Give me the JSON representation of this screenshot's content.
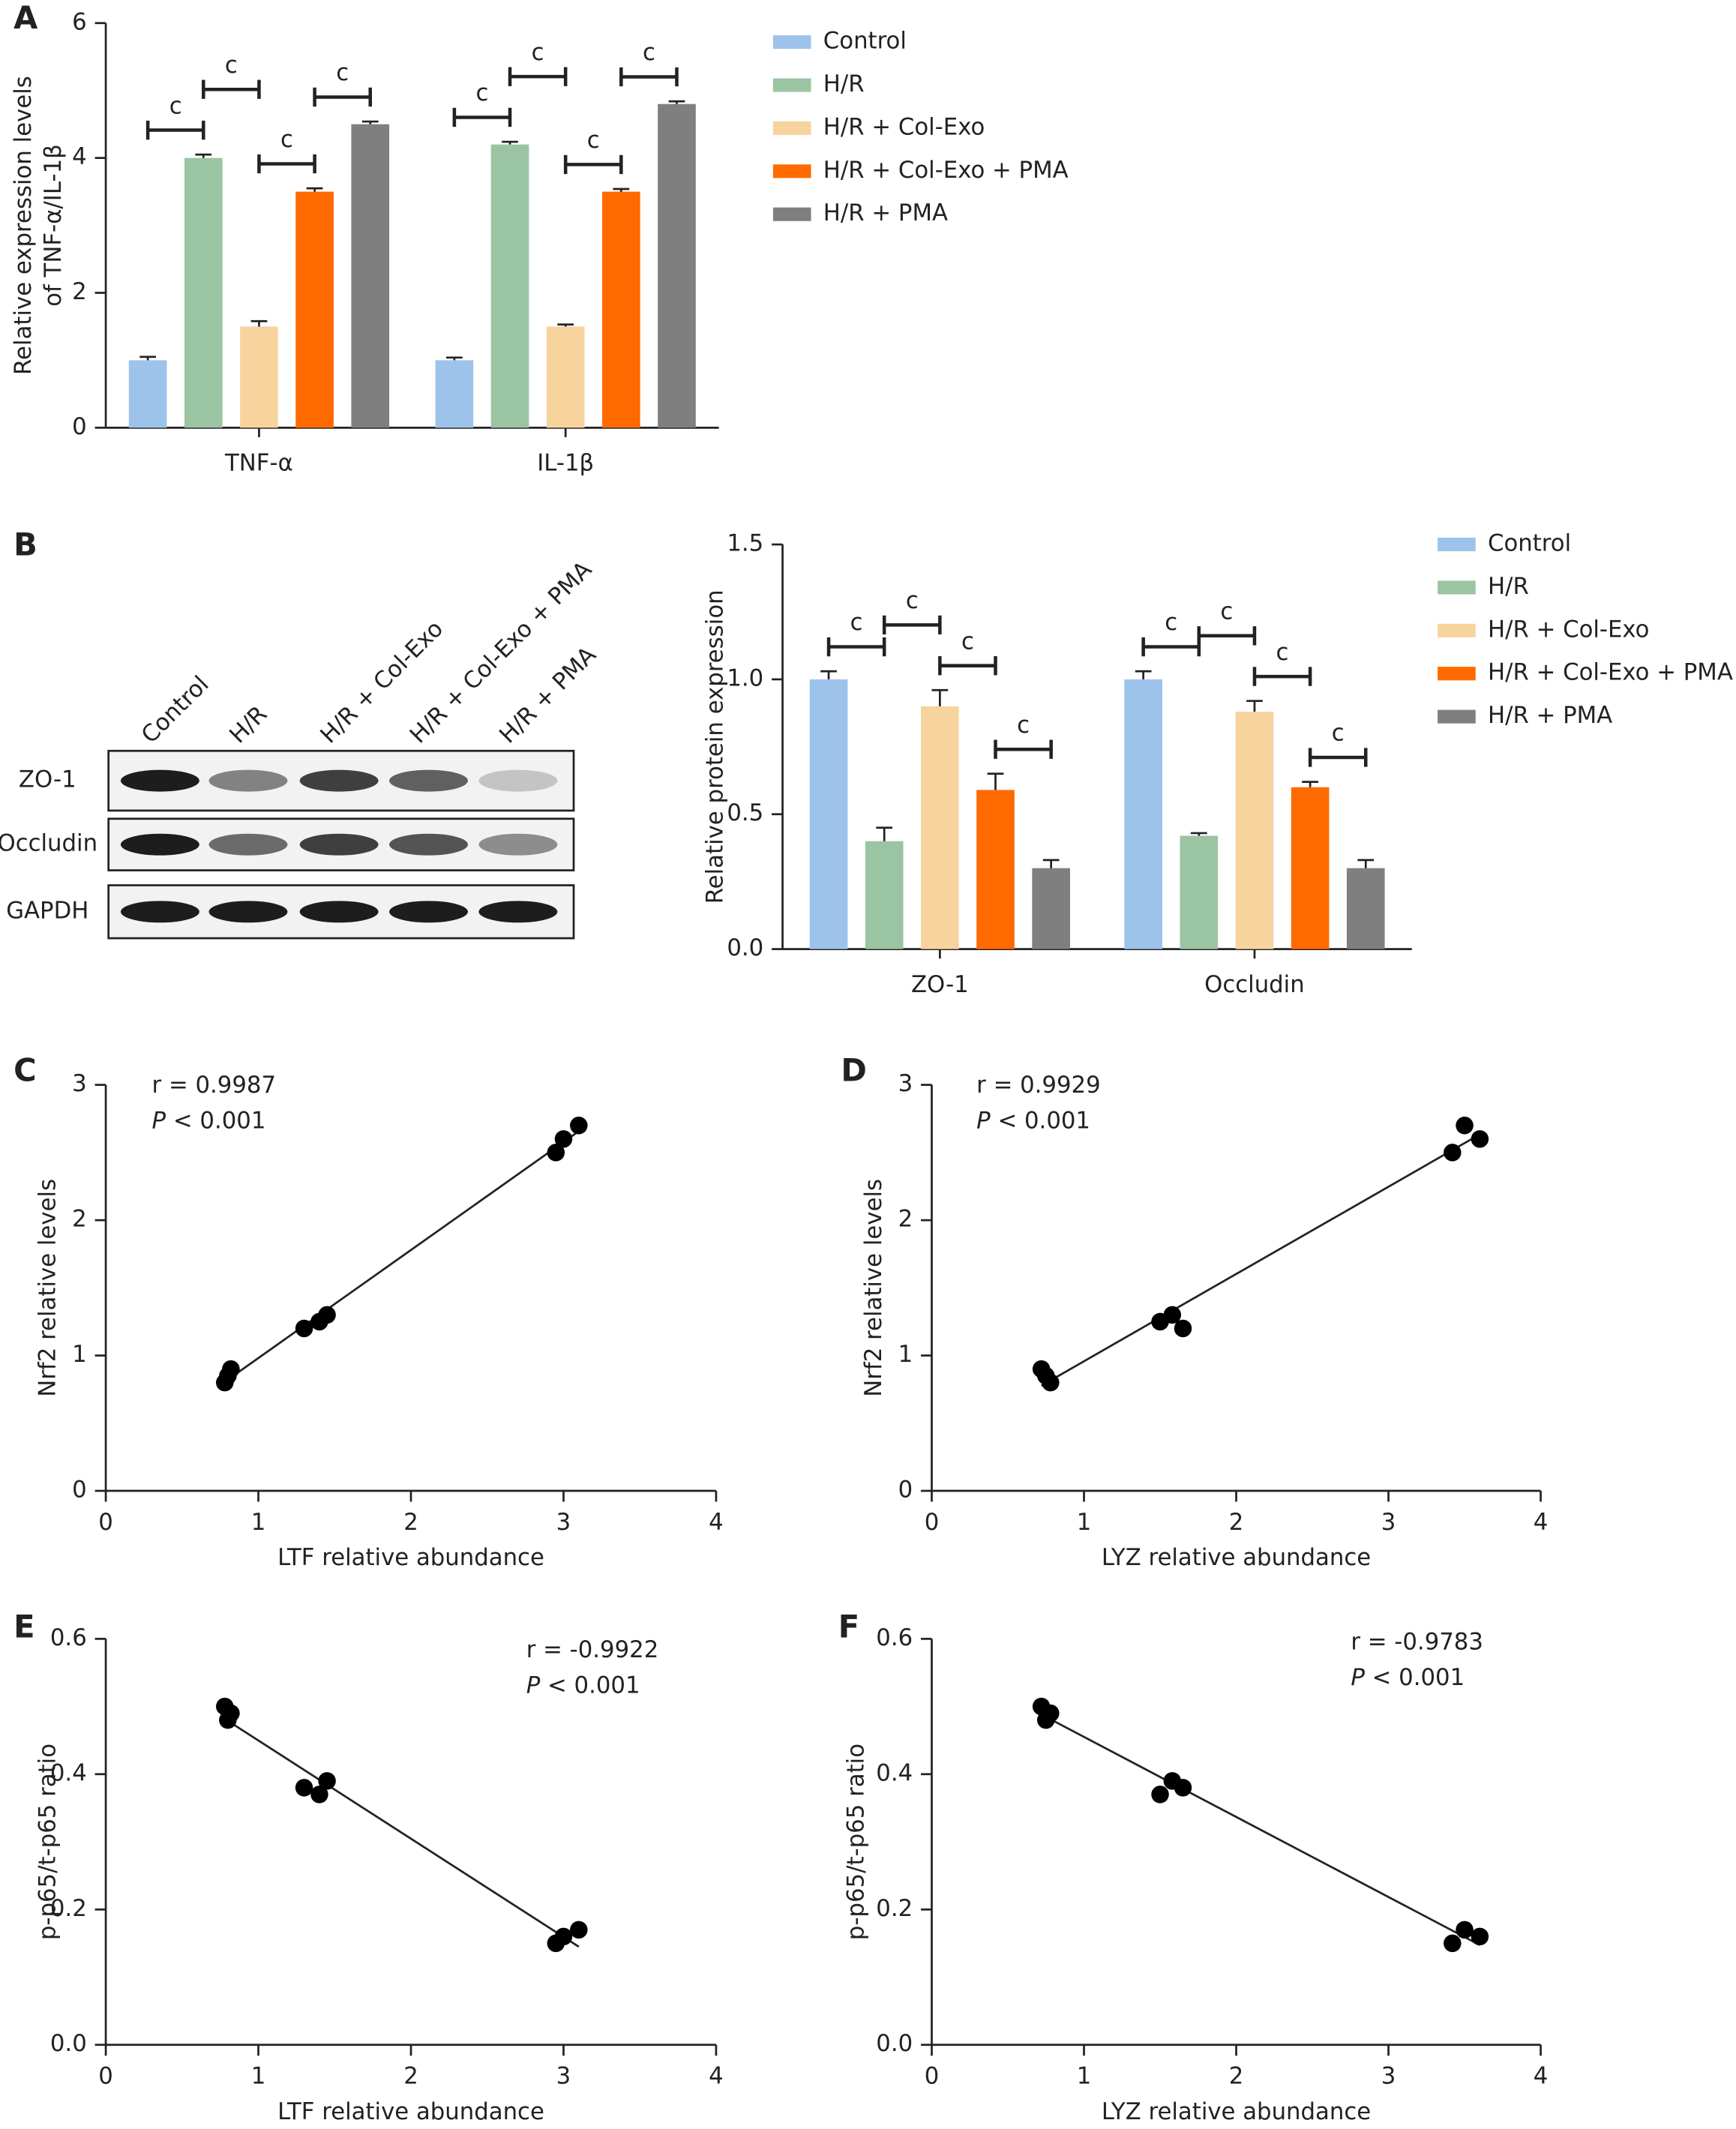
{
  "chart_data": [
    {
      "type": "bar",
      "panel": "A",
      "ylabel": [
        "Relative expression levels",
        "of TNF-α/IL-1β"
      ],
      "categories": [
        "TNF-α",
        "IL-1β"
      ],
      "series": [
        {
          "name": "Control",
          "color": "#9dc3ea",
          "values": [
            1.0,
            1.0
          ],
          "errors": [
            0.05,
            0.04
          ]
        },
        {
          "name": "H/R",
          "color": "#9bc4a3",
          "values": [
            4.0,
            4.2
          ],
          "errors": [
            0.05,
            0.04
          ]
        },
        {
          "name": "H/R + Col-Exo",
          "color": "#f7d39e",
          "values": [
            1.5,
            1.5
          ],
          "errors": [
            0.08,
            0.03
          ]
        },
        {
          "name": "H/R + Col-Exo + PMA",
          "color": "#ff6a00",
          "values": [
            3.5,
            3.5
          ],
          "errors": [
            0.05,
            0.04
          ]
        },
        {
          "name": "H/R + PMA",
          "color": "#7f7f7f",
          "values": [
            4.5,
            4.8
          ],
          "errors": [
            0.04,
            0.04
          ]
        }
      ],
      "ylim": [
        0,
        6
      ],
      "yticks": [
        0,
        2,
        4,
        6
      ],
      "significance_label": "c"
    },
    {
      "type": "bar",
      "panel": "B",
      "ylabel": [
        "Relative protein expression"
      ],
      "categories": [
        "ZO-1",
        "Occludin"
      ],
      "series": [
        {
          "name": "Control",
          "color": "#9dc3ea",
          "values": [
            1.0,
            1.0
          ],
          "errors": [
            0.03,
            0.03
          ]
        },
        {
          "name": "H/R",
          "color": "#9bc4a3",
          "values": [
            0.4,
            0.42
          ],
          "errors": [
            0.05,
            0.01
          ]
        },
        {
          "name": "H/R + Col-Exo",
          "color": "#f7d39e",
          "values": [
            0.9,
            0.88
          ],
          "errors": [
            0.06,
            0.04
          ]
        },
        {
          "name": "H/R + Col-Exo + PMA",
          "color": "#ff6a00",
          "values": [
            0.59,
            0.6
          ],
          "errors": [
            0.06,
            0.02
          ]
        },
        {
          "name": "H/R + PMA",
          "color": "#7f7f7f",
          "values": [
            0.3,
            0.3
          ],
          "errors": [
            0.03,
            0.03
          ]
        }
      ],
      "ylim": [
        0,
        1.5
      ],
      "yticks": [
        {
          "value": 0,
          "label": "0.0"
        },
        0.5,
        {
          "value": 1,
          "label": "1.0"
        },
        1.5
      ],
      "significance_label": "c"
    },
    {
      "type": "scatter",
      "panel": "C",
      "xlabel": "LTF relative abundance",
      "ylabel": [
        "Nrf2 relative levels"
      ],
      "x": [
        0.78,
        0.8,
        0.82,
        1.3,
        1.4,
        1.45,
        2.95,
        3.0,
        3.1
      ],
      "y": [
        0.8,
        0.85,
        0.9,
        1.2,
        1.25,
        1.3,
        2.5,
        2.6,
        2.7
      ],
      "color": "#000000",
      "xlim": [
        0,
        4
      ],
      "xticks": [
        0,
        1,
        2,
        3,
        4
      ],
      "ylim": [
        0,
        3
      ],
      "yticks": [
        0,
        1,
        2,
        3
      ],
      "annotations": [
        "r = 0.9987",
        "P < 0.001"
      ]
    },
    {
      "type": "scatter",
      "panel": "D",
      "xlabel": "LYZ relative abundance",
      "ylabel": [
        "Nrf2 relative levels"
      ],
      "x": [
        0.72,
        0.75,
        0.78,
        1.5,
        1.58,
        1.65,
        3.42,
        3.5,
        3.6
      ],
      "y": [
        0.9,
        0.85,
        0.8,
        1.25,
        1.3,
        1.2,
        2.5,
        2.7,
        2.6
      ],
      "color": "#000000",
      "xlim": [
        0,
        4
      ],
      "xticks": [
        0,
        1,
        2,
        3,
        4
      ],
      "ylim": [
        0,
        3
      ],
      "yticks": [
        0,
        1,
        2,
        3
      ],
      "annotations": [
        "r = 0.9929",
        "P < 0.001"
      ]
    },
    {
      "type": "scatter",
      "panel": "E",
      "xlabel": "LTF relative abundance",
      "ylabel": [
        "p-p65/t-p65 ratio"
      ],
      "x": [
        0.78,
        0.8,
        0.82,
        1.3,
        1.4,
        1.45,
        2.95,
        3.0,
        3.1
      ],
      "y": [
        0.5,
        0.48,
        0.49,
        0.38,
        0.37,
        0.39,
        0.15,
        0.16,
        0.17
      ],
      "color": "#000000",
      "xlim": [
        0,
        4
      ],
      "xticks": [
        0,
        1,
        2,
        3,
        4
      ],
      "ylim": [
        0,
        0.6
      ],
      "yticks": [
        {
          "value": 0,
          "label": "0.0"
        },
        0.2,
        0.4,
        0.6
      ],
      "annotations": [
        "r = -0.9922",
        "P < 0.001"
      ]
    },
    {
      "type": "scatter",
      "panel": "F",
      "xlabel": "LYZ relative abundance",
      "ylabel": [
        "p-p65/t-p65 ratio"
      ],
      "x": [
        0.72,
        0.75,
        0.78,
        1.5,
        1.58,
        1.65,
        3.42,
        3.5,
        3.6
      ],
      "y": [
        0.5,
        0.48,
        0.49,
        0.37,
        0.39,
        0.38,
        0.15,
        0.17,
        0.16
      ],
      "color": "#000000",
      "xlim": [
        0,
        4
      ],
      "xticks": [
        0,
        1,
        2,
        3,
        4
      ],
      "ylim": [
        0,
        0.6
      ],
      "yticks": [
        {
          "value": 0,
          "label": "0.0"
        },
        0.2,
        0.4,
        0.6
      ],
      "annotations": [
        "r = -0.9783",
        "P < 0.001"
      ]
    }
  ],
  "western_blot": {
    "lanes": [
      "Control",
      "H/R",
      "H/R + Col-Exo",
      "H/R + Col-Exo + PMA",
      "H/R + PMA"
    ],
    "rows": [
      "ZO-1",
      "Occludin",
      "GAPDH"
    ]
  }
}
